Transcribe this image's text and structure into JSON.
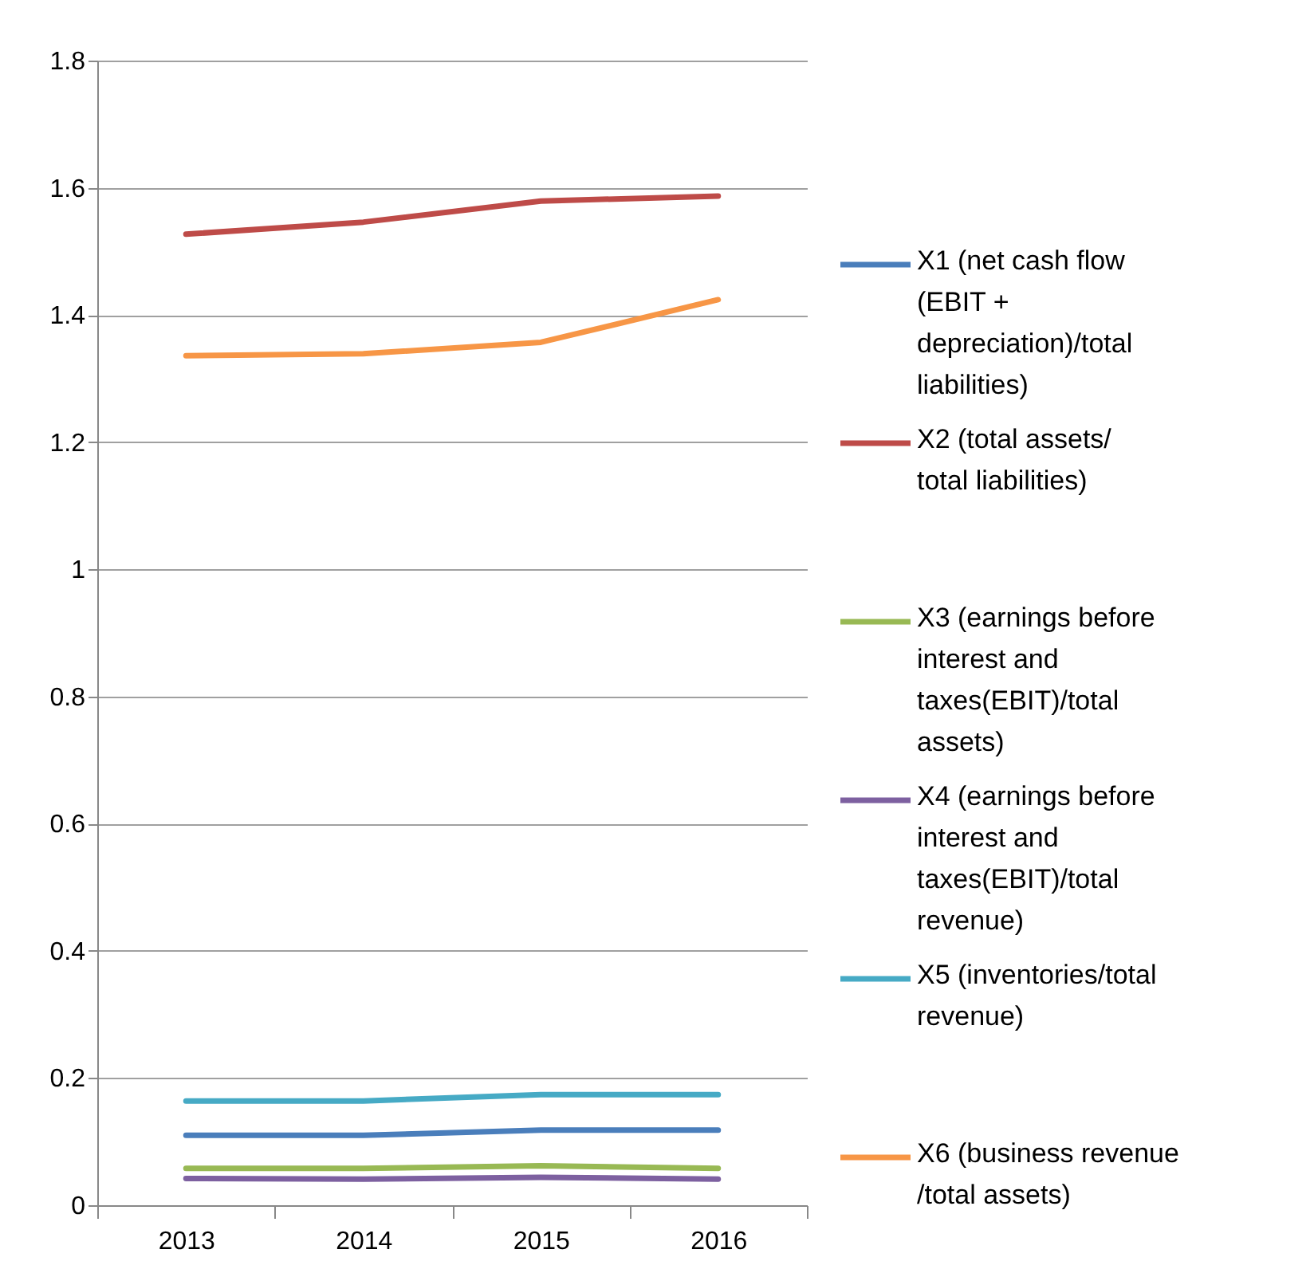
{
  "chart_data": {
    "type": "line",
    "categories": [
      "2013",
      "2014",
      "2015",
      "2016"
    ],
    "series": [
      {
        "name": "X1 (net cash flow (EBIT + depreciation)/total liabilities)",
        "color": "#4a7ebb",
        "values": [
          0.11,
          0.11,
          0.118,
          0.118
        ]
      },
      {
        "name": "X2 (total assets/ total liabilities)",
        "color": "#be4b48",
        "values": [
          1.527,
          1.546,
          1.579,
          1.587
        ]
      },
      {
        "name": "X3 (earnings before interest and taxes(EBIT)/total assets)",
        "color": "#98b954",
        "values": [
          0.058,
          0.058,
          0.062,
          0.058
        ]
      },
      {
        "name": "X4 (earnings before interest and taxes(EBIT)/total revenue)",
        "color": "#7d60a0",
        "values": [
          0.042,
          0.041,
          0.044,
          0.041
        ]
      },
      {
        "name": "X5 (inventories/total revenue)",
        "color": "#46aac5",
        "values": [
          0.164,
          0.164,
          0.174,
          0.174
        ]
      },
      {
        "name": "X6 (business revenue /total assets)",
        "color": "#f79646",
        "values": [
          1.336,
          1.339,
          1.357,
          1.424
        ]
      }
    ],
    "ylim": [
      0,
      1.8
    ],
    "yticks": [
      0,
      0.2,
      0.4,
      0.6,
      0.8,
      1,
      1.2,
      1.4,
      1.6,
      1.8
    ],
    "grid": "y",
    "legend": "right",
    "marker": "none",
    "line_style": "solid"
  }
}
